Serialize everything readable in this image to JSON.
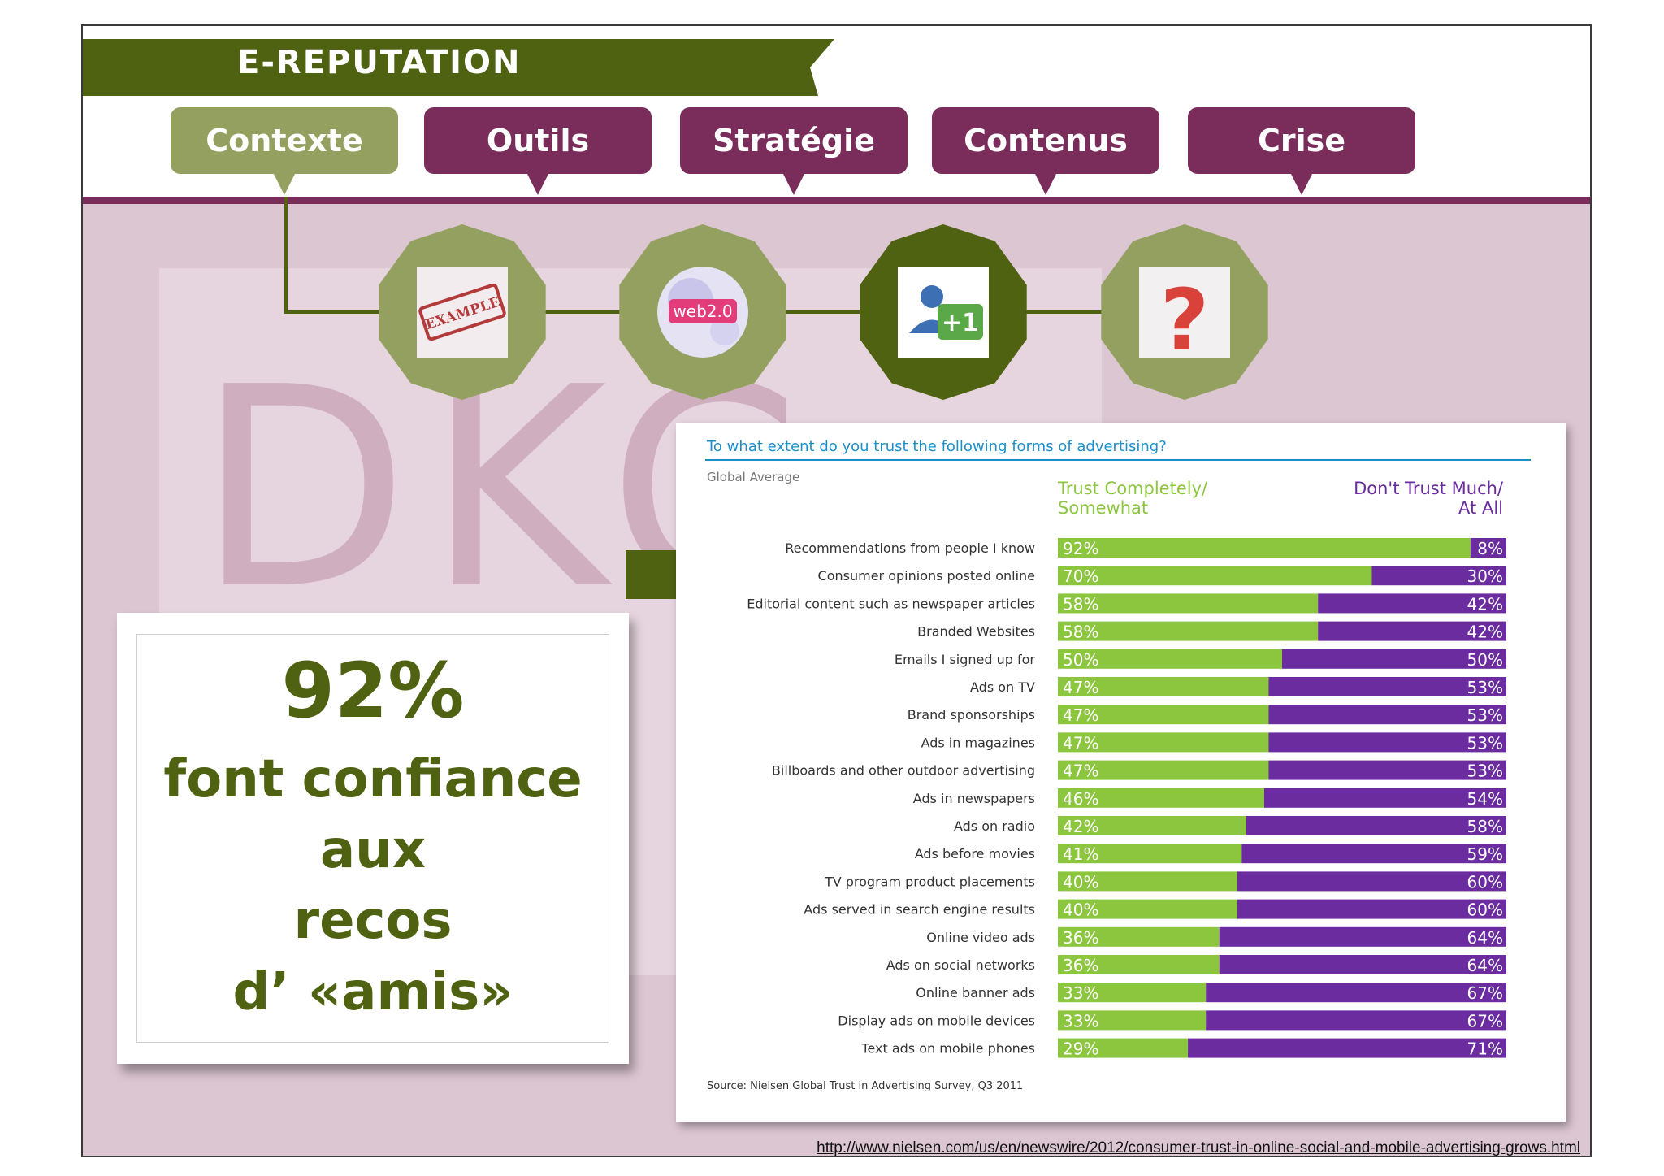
{
  "section_title": "E-REPUTATION",
  "tabs": [
    {
      "label": "Contexte",
      "active": true
    },
    {
      "label": "Outils",
      "active": false
    },
    {
      "label": "Stratégie",
      "active": false
    },
    {
      "label": "Contenus",
      "active": false
    },
    {
      "label": "Crise",
      "active": false
    }
  ],
  "icons": [
    {
      "name": "example-stamp-icon",
      "text": "EXAMPLE"
    },
    {
      "name": "web20-bubble-icon",
      "text": "web2.0"
    },
    {
      "name": "plus-one-user-icon",
      "text": "+1"
    },
    {
      "name": "question-mark-icon",
      "text": "?"
    }
  ],
  "watermark": {
    "text": "DKC"
  },
  "highlight": {
    "percent": "92%",
    "line1": "font confiance",
    "line2": "aux",
    "line3": "recos",
    "line4": "d’ «amis»"
  },
  "colors": {
    "dark_green": "#4e6211",
    "olive": "#93a05f",
    "plum": "#7a2c5b",
    "trust_green": "#8cc63f",
    "distrust_purple": "#6a2c9e",
    "chart_title_blue": "#1a8fc9"
  },
  "chart_data": {
    "type": "bar",
    "title": "To what extent do you trust the following forms of advertising?",
    "subtitle": "Global Average",
    "series": [
      {
        "name": "Trust Completely/ Somewhat",
        "values": [
          92,
          70,
          58,
          58,
          50,
          47,
          47,
          47,
          47,
          46,
          42,
          41,
          40,
          40,
          36,
          36,
          33,
          33,
          29
        ]
      },
      {
        "name": "Don't Trust Much/ At All",
        "values": [
          8,
          30,
          42,
          42,
          50,
          53,
          53,
          53,
          53,
          54,
          58,
          59,
          60,
          60,
          64,
          64,
          67,
          67,
          71
        ]
      }
    ],
    "categories": [
      "Recommendations from people I know",
      "Consumer opinions posted online",
      "Editorial content such as newspaper articles",
      "Branded Websites",
      "Emails I signed up for",
      "Ads on TV",
      "Brand sponsorships",
      "Ads in magazines",
      "Billboards and other outdoor advertising",
      "Ads in newspapers",
      "Ads on radio",
      "Ads before movies",
      "TV program product placements",
      "Ads served in search engine results",
      "Online video ads",
      "Ads on social networks",
      "Online banner ads",
      "Display ads on mobile devices",
      "Text ads on mobile phones"
    ],
    "xlim": [
      0,
      100
    ],
    "stacked": true,
    "orientation": "horizontal",
    "legend_position": "top",
    "source": "Source: Nielsen Global Trust in Advertising Survey, Q3 2011"
  },
  "footer_url": "http://www.nielsen.com/us/en/newswire/2012/consumer-trust-in-online-social-and-mobile-advertising-grows.html"
}
